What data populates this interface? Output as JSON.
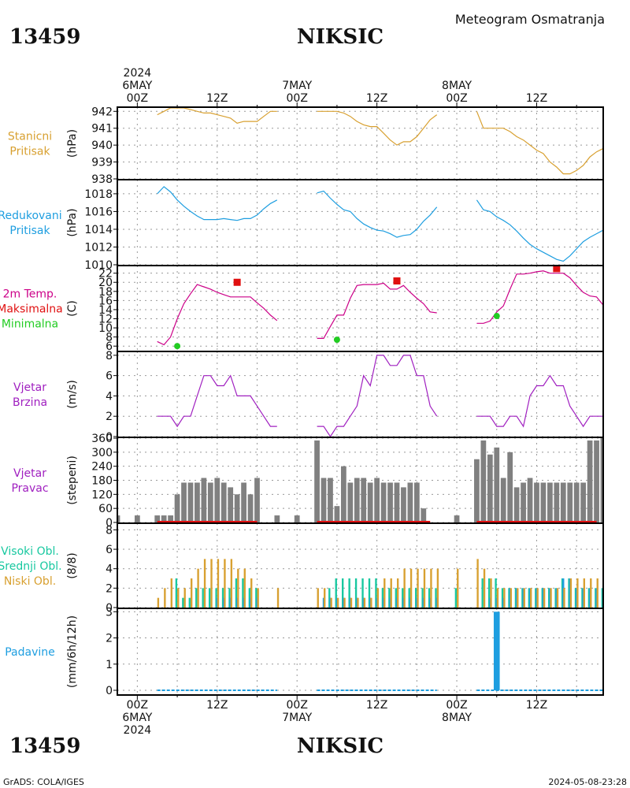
{
  "header": {
    "station_id": "13459",
    "station_name": "NIKSIC",
    "subtitle": "Meteogram Osmatranja"
  },
  "footer": {
    "station_id": "13459",
    "station_name": "NIKSIC",
    "credit": "GrADS: COLA/IGES",
    "timestamp": "2024-05-08-23:28"
  },
  "time_axis": {
    "top_labels": [
      {
        "hour": 0,
        "lines": [
          "2024",
          "6MAY",
          "00Z"
        ]
      },
      {
        "hour": 12,
        "lines": [
          "12Z"
        ]
      },
      {
        "hour": 24,
        "lines": [
          "7MAY",
          "00Z"
        ]
      },
      {
        "hour": 36,
        "lines": [
          "12Z"
        ]
      },
      {
        "hour": 48,
        "lines": [
          "8MAY",
          "00Z"
        ]
      },
      {
        "hour": 60,
        "lines": [
          "12Z"
        ]
      }
    ],
    "bottom_labels": [
      {
        "hour": 0,
        "lines": [
          "00Z",
          "6MAY",
          "2024"
        ]
      },
      {
        "hour": 12,
        "lines": [
          "12Z"
        ]
      },
      {
        "hour": 24,
        "lines": [
          "00Z",
          "7MAY"
        ]
      },
      {
        "hour": 36,
        "lines": [
          "12Z"
        ]
      },
      {
        "hour": 48,
        "lines": [
          "00Z",
          "8MAY"
        ]
      },
      {
        "hour": 60,
        "lines": [
          "12Z"
        ]
      }
    ],
    "range_hours": [
      -3,
      70
    ]
  },
  "colors": {
    "pressure": "#d8a030",
    "reduced": "#1e9ee0",
    "temp": "#cc0088",
    "tmax": "#e01010",
    "tmin": "#22cc22",
    "wind": "#a020c0",
    "wind_dir": "#808080",
    "cloud_high": "#18c8a0",
    "cloud_mid": "#1e9ee0",
    "cloud_low": "#d8a030",
    "precip": "#1e9ee0"
  },
  "chart_data": [
    {
      "type": "line",
      "labels": [
        "Stanicni",
        "Pritisak"
      ],
      "ylabel": "(hPa)",
      "ylim": [
        938,
        942.2
      ],
      "yticks": [
        938,
        939,
        940,
        941,
        942
      ],
      "grid": true,
      "series": [
        {
          "x": [
            3,
            4,
            5,
            6,
            7,
            8,
            9,
            10,
            11,
            12,
            13,
            14,
            15,
            16,
            17,
            18,
            19,
            20,
            21
          ],
          "y": [
            941.8,
            942.0,
            942.2,
            942.2,
            942.2,
            942.1,
            942.0,
            941.9,
            941.9,
            941.8,
            941.7,
            941.6,
            941.3,
            941.4,
            941.4,
            941.4,
            941.7,
            942.0,
            942.0
          ]
        },
        {
          "x": [
            27,
            28,
            29,
            30,
            31,
            32,
            33,
            34,
            35,
            36,
            37,
            38,
            39,
            40,
            41,
            42,
            43,
            44,
            45
          ],
          "y": [
            942.0,
            942.0,
            942.0,
            942.0,
            941.9,
            941.7,
            941.4,
            941.2,
            941.1,
            941.1,
            940.7,
            940.3,
            940.0,
            940.2,
            940.2,
            940.5,
            941.0,
            941.5,
            941.8
          ]
        },
        {
          "x": [
            51,
            52,
            53,
            54,
            55,
            56,
            57,
            58,
            59,
            60,
            61,
            62,
            63,
            64,
            65,
            66,
            67,
            68,
            69,
            70
          ],
          "y": [
            942.0,
            941.0,
            941.0,
            941.0,
            941.0,
            940.8,
            940.5,
            940.3,
            940.0,
            939.7,
            939.5,
            939.0,
            938.7,
            938.3,
            938.3,
            938.5,
            938.8,
            939.3,
            939.6,
            939.8
          ]
        }
      ]
    },
    {
      "type": "line",
      "labels": [
        "Redukovani",
        "Pritisak"
      ],
      "ylabel": "(hPa)",
      "ylim": [
        1010,
        1019.5
      ],
      "yticks": [
        1010,
        1012,
        1014,
        1016,
        1018
      ],
      "grid": true,
      "series": [
        {
          "x": [
            3,
            4,
            5,
            6,
            7,
            8,
            9,
            10,
            11,
            12,
            13,
            14,
            15,
            16,
            17,
            18,
            19,
            20,
            21
          ],
          "y": [
            1018.0,
            1018.8,
            1018.2,
            1017.3,
            1016.6,
            1016.0,
            1015.5,
            1015.1,
            1015.1,
            1015.1,
            1015.2,
            1015.1,
            1015.0,
            1015.2,
            1015.2,
            1015.6,
            1016.3,
            1016.9,
            1017.3
          ]
        },
        {
          "x": [
            27,
            28,
            29,
            30,
            31,
            32,
            33,
            34,
            35,
            36,
            37,
            38,
            39,
            40,
            41,
            42,
            43,
            44,
            45
          ],
          "y": [
            1018.1,
            1018.3,
            1017.5,
            1016.8,
            1016.2,
            1016.0,
            1015.2,
            1014.6,
            1014.2,
            1013.9,
            1013.8,
            1013.5,
            1013.1,
            1013.3,
            1013.4,
            1014.0,
            1014.9,
            1015.6,
            1016.5
          ]
        },
        {
          "x": [
            51,
            52,
            53,
            54,
            55,
            56,
            57,
            58,
            59,
            60,
            61,
            62,
            63,
            64,
            65,
            66,
            67,
            68,
            69,
            70
          ],
          "y": [
            1017.3,
            1016.2,
            1016.0,
            1015.4,
            1015.0,
            1014.5,
            1013.8,
            1013.0,
            1012.3,
            1011.8,
            1011.4,
            1011.0,
            1010.6,
            1010.4,
            1011.0,
            1011.8,
            1012.6,
            1013.1,
            1013.5,
            1013.9
          ]
        }
      ]
    },
    {
      "type": "line",
      "labels": [
        "2m Temp.",
        "Maksimalna",
        "Minimalna"
      ],
      "ylabel": "(C)",
      "ylim": [
        5,
        23.5
      ],
      "yticks": [
        6,
        8,
        10,
        12,
        14,
        16,
        18,
        20,
        22
      ],
      "grid": true,
      "series": [
        {
          "name": "2m Temp.",
          "x": [
            3,
            4,
            5,
            6,
            7,
            8,
            9,
            10,
            11,
            12,
            13,
            14,
            15,
            16,
            17,
            18,
            19,
            20,
            21
          ],
          "y": [
            7.0,
            6.3,
            8.0,
            12.0,
            15.3,
            17.5,
            19.5,
            19.0,
            18.5,
            17.8,
            17.3,
            16.8,
            16.8,
            16.8,
            16.8,
            15.5,
            14.3,
            12.8,
            11.6
          ]
        },
        {
          "name": "2m Temp.",
          "x": [
            27,
            28,
            29,
            30,
            31,
            32,
            33,
            34,
            35,
            36,
            37,
            38,
            39,
            40,
            41,
            42,
            43,
            44,
            45
          ],
          "y": [
            7.7,
            7.7,
            10.3,
            12.8,
            12.8,
            16.5,
            19.3,
            19.5,
            19.5,
            19.5,
            19.8,
            18.5,
            18.5,
            19.3,
            17.8,
            16.5,
            15.3,
            13.5,
            13.3
          ]
        },
        {
          "name": "2m Temp.",
          "x": [
            51,
            52,
            53,
            54,
            55,
            56,
            57,
            58,
            59,
            60,
            61,
            62,
            63,
            64,
            65,
            66,
            67,
            68,
            69,
            70
          ],
          "y": [
            11.0,
            11.0,
            11.5,
            13.5,
            14.8,
            18.5,
            21.8,
            21.8,
            22.0,
            22.3,
            22.5,
            22.0,
            22.0,
            22.0,
            21.0,
            19.3,
            17.8,
            17.0,
            16.8,
            15.0
          ]
        }
      ],
      "tmax": {
        "x": [
          15,
          39,
          63
        ],
        "y": [
          20.0,
          20.3,
          23.0
        ]
      },
      "tmin": {
        "x": [
          6,
          30,
          54
        ],
        "y": [
          6.0,
          7.4,
          12.6
        ]
      }
    },
    {
      "type": "line",
      "labels": [
        "Vjetar",
        "Brzina"
      ],
      "ylabel": "(m/s)",
      "ylim": [
        0,
        8.3
      ],
      "yticks": [
        0,
        2,
        4,
        6,
        8
      ],
      "grid": true,
      "series": [
        {
          "x": [
            3,
            4,
            5,
            6,
            7,
            8,
            9,
            10,
            11,
            12,
            13,
            14,
            15,
            16,
            17,
            18,
            19,
            20,
            21
          ],
          "y": [
            2,
            2,
            2,
            1,
            2,
            2,
            4,
            6,
            6,
            5,
            5,
            6,
            4,
            4,
            4,
            3,
            2,
            1,
            1
          ]
        },
        {
          "x": [
            27,
            28,
            29,
            30,
            31,
            32,
            33,
            34,
            35,
            36,
            37,
            38,
            39,
            40,
            41,
            42,
            43,
            44,
            45
          ],
          "y": [
            1,
            1,
            0,
            1,
            1,
            2,
            3,
            6,
            5,
            8,
            8,
            7,
            7,
            8,
            8,
            6,
            6,
            3,
            2
          ]
        },
        {
          "x": [
            51,
            52,
            53,
            54,
            55,
            56,
            57,
            58,
            59,
            60,
            61,
            62,
            63,
            64,
            65,
            66,
            67,
            68,
            69,
            70
          ],
          "y": [
            2,
            2,
            2,
            1,
            1,
            2,
            2,
            1,
            4,
            5,
            5,
            6,
            5,
            5,
            3,
            2,
            1,
            2,
            2,
            2
          ]
        }
      ]
    },
    {
      "type": "bar",
      "labels": [
        "Vjetar",
        "Pravac"
      ],
      "ylabel": "(stepeni)",
      "ylim": [
        0,
        360
      ],
      "yticks": [
        0,
        60,
        120,
        180,
        240,
        300,
        360
      ],
      "grid": true,
      "x": [
        -3,
        0,
        3,
        4,
        5,
        6,
        7,
        8,
        9,
        10,
        11,
        12,
        13,
        14,
        15,
        16,
        17,
        18,
        21,
        24,
        27,
        28,
        29,
        30,
        31,
        32,
        33,
        34,
        35,
        36,
        37,
        38,
        39,
        40,
        41,
        42,
        43,
        44,
        45,
        48,
        51,
        52,
        53,
        54,
        55,
        56,
        57,
        58,
        59,
        60,
        61,
        62,
        63,
        64,
        65,
        66,
        67,
        68,
        69,
        70
      ],
      "values": [
        30,
        30,
        30,
        30,
        30,
        120,
        170,
        170,
        170,
        190,
        170,
        190,
        170,
        150,
        120,
        170,
        120,
        190,
        30,
        30,
        350,
        190,
        190,
        70,
        240,
        170,
        190,
        190,
        170,
        190,
        170,
        170,
        170,
        150,
        170,
        170,
        60,
        0,
        0,
        30,
        270,
        350,
        290,
        320,
        190,
        300,
        150,
        170,
        190,
        170,
        170,
        170,
        170,
        170,
        170,
        170,
        170,
        350,
        350,
        360
      ],
      "baseline_marker_x_ranges": [
        [
          3,
          18
        ],
        [
          27,
          44
        ],
        [
          51,
          69
        ]
      ]
    },
    {
      "type": "bar",
      "labels": [
        "Visoki Obl.",
        "Srednji Obl.",
        "Niski Obl."
      ],
      "ylabel": "(8/8)",
      "ylim": [
        0,
        8.6
      ],
      "yticks": [
        0,
        2,
        4,
        6,
        8
      ],
      "grid": true,
      "x": [
        3,
        4,
        5,
        6,
        7,
        8,
        9,
        10,
        11,
        12,
        13,
        14,
        15,
        16,
        17,
        18,
        21,
        24,
        27,
        28,
        29,
        30,
        31,
        32,
        33,
        34,
        35,
        36,
        37,
        38,
        39,
        40,
        41,
        42,
        43,
        44,
        45,
        48,
        51,
        52,
        53,
        54,
        55,
        56,
        57,
        58,
        59,
        60,
        61,
        62,
        63,
        64,
        65,
        66,
        67,
        68,
        69,
        70
      ],
      "series": [
        {
          "name": "Visoki Obl.",
          "values": [
            0,
            0,
            0,
            3,
            1,
            1,
            2,
            2,
            2,
            2,
            2,
            2,
            3,
            3,
            2,
            2,
            0,
            0,
            0,
            0,
            2,
            3,
            3,
            3,
            3,
            3,
            3,
            3,
            2,
            2,
            2,
            2,
            2,
            2,
            2,
            2,
            2,
            2,
            0,
            3,
            3,
            3,
            2,
            2,
            2,
            2,
            2,
            2,
            2,
            2,
            2,
            3,
            3,
            2,
            2,
            2,
            2,
            2
          ]
        },
        {
          "name": "Srednji Obl.",
          "values": [
            0,
            0,
            0,
            0,
            0,
            0,
            0,
            0,
            0,
            1,
            1,
            1,
            1,
            1,
            1,
            1,
            0,
            0,
            0,
            1,
            1,
            1,
            1,
            1,
            1,
            1,
            1,
            1,
            1,
            1,
            1,
            1,
            1,
            1,
            1,
            1,
            1,
            0,
            0,
            0,
            1,
            1,
            1,
            2,
            2,
            2,
            2,
            2,
            2,
            2,
            2,
            3,
            3,
            2,
            2,
            2,
            2,
            2
          ]
        },
        {
          "name": "Niski Obl.",
          "values": [
            1,
            2,
            3,
            2,
            2,
            3,
            4,
            5,
            5,
            5,
            5,
            5,
            4,
            4,
            3,
            2,
            2,
            0,
            2,
            2,
            1,
            1,
            1,
            1,
            1,
            1,
            1,
            2,
            3,
            3,
            3,
            4,
            4,
            4,
            4,
            4,
            4,
            4,
            5,
            4,
            3,
            2,
            2,
            2,
            2,
            2,
            2,
            2,
            2,
            2,
            2,
            2,
            3,
            3,
            3,
            3,
            3,
            2
          ]
        }
      ]
    },
    {
      "type": "bar",
      "labels": [
        "Padavine"
      ],
      "ylabel": "(mm/6h/12h)",
      "ylim": [
        -0.15,
        3.1
      ],
      "yticks": [
        0,
        1,
        2,
        3
      ],
      "grid": true,
      "x": [
        54
      ],
      "values": [
        3.0
      ],
      "zero_line_x_ranges": [
        [
          3,
          21
        ],
        [
          27,
          45
        ],
        [
          51,
          70
        ]
      ]
    }
  ]
}
